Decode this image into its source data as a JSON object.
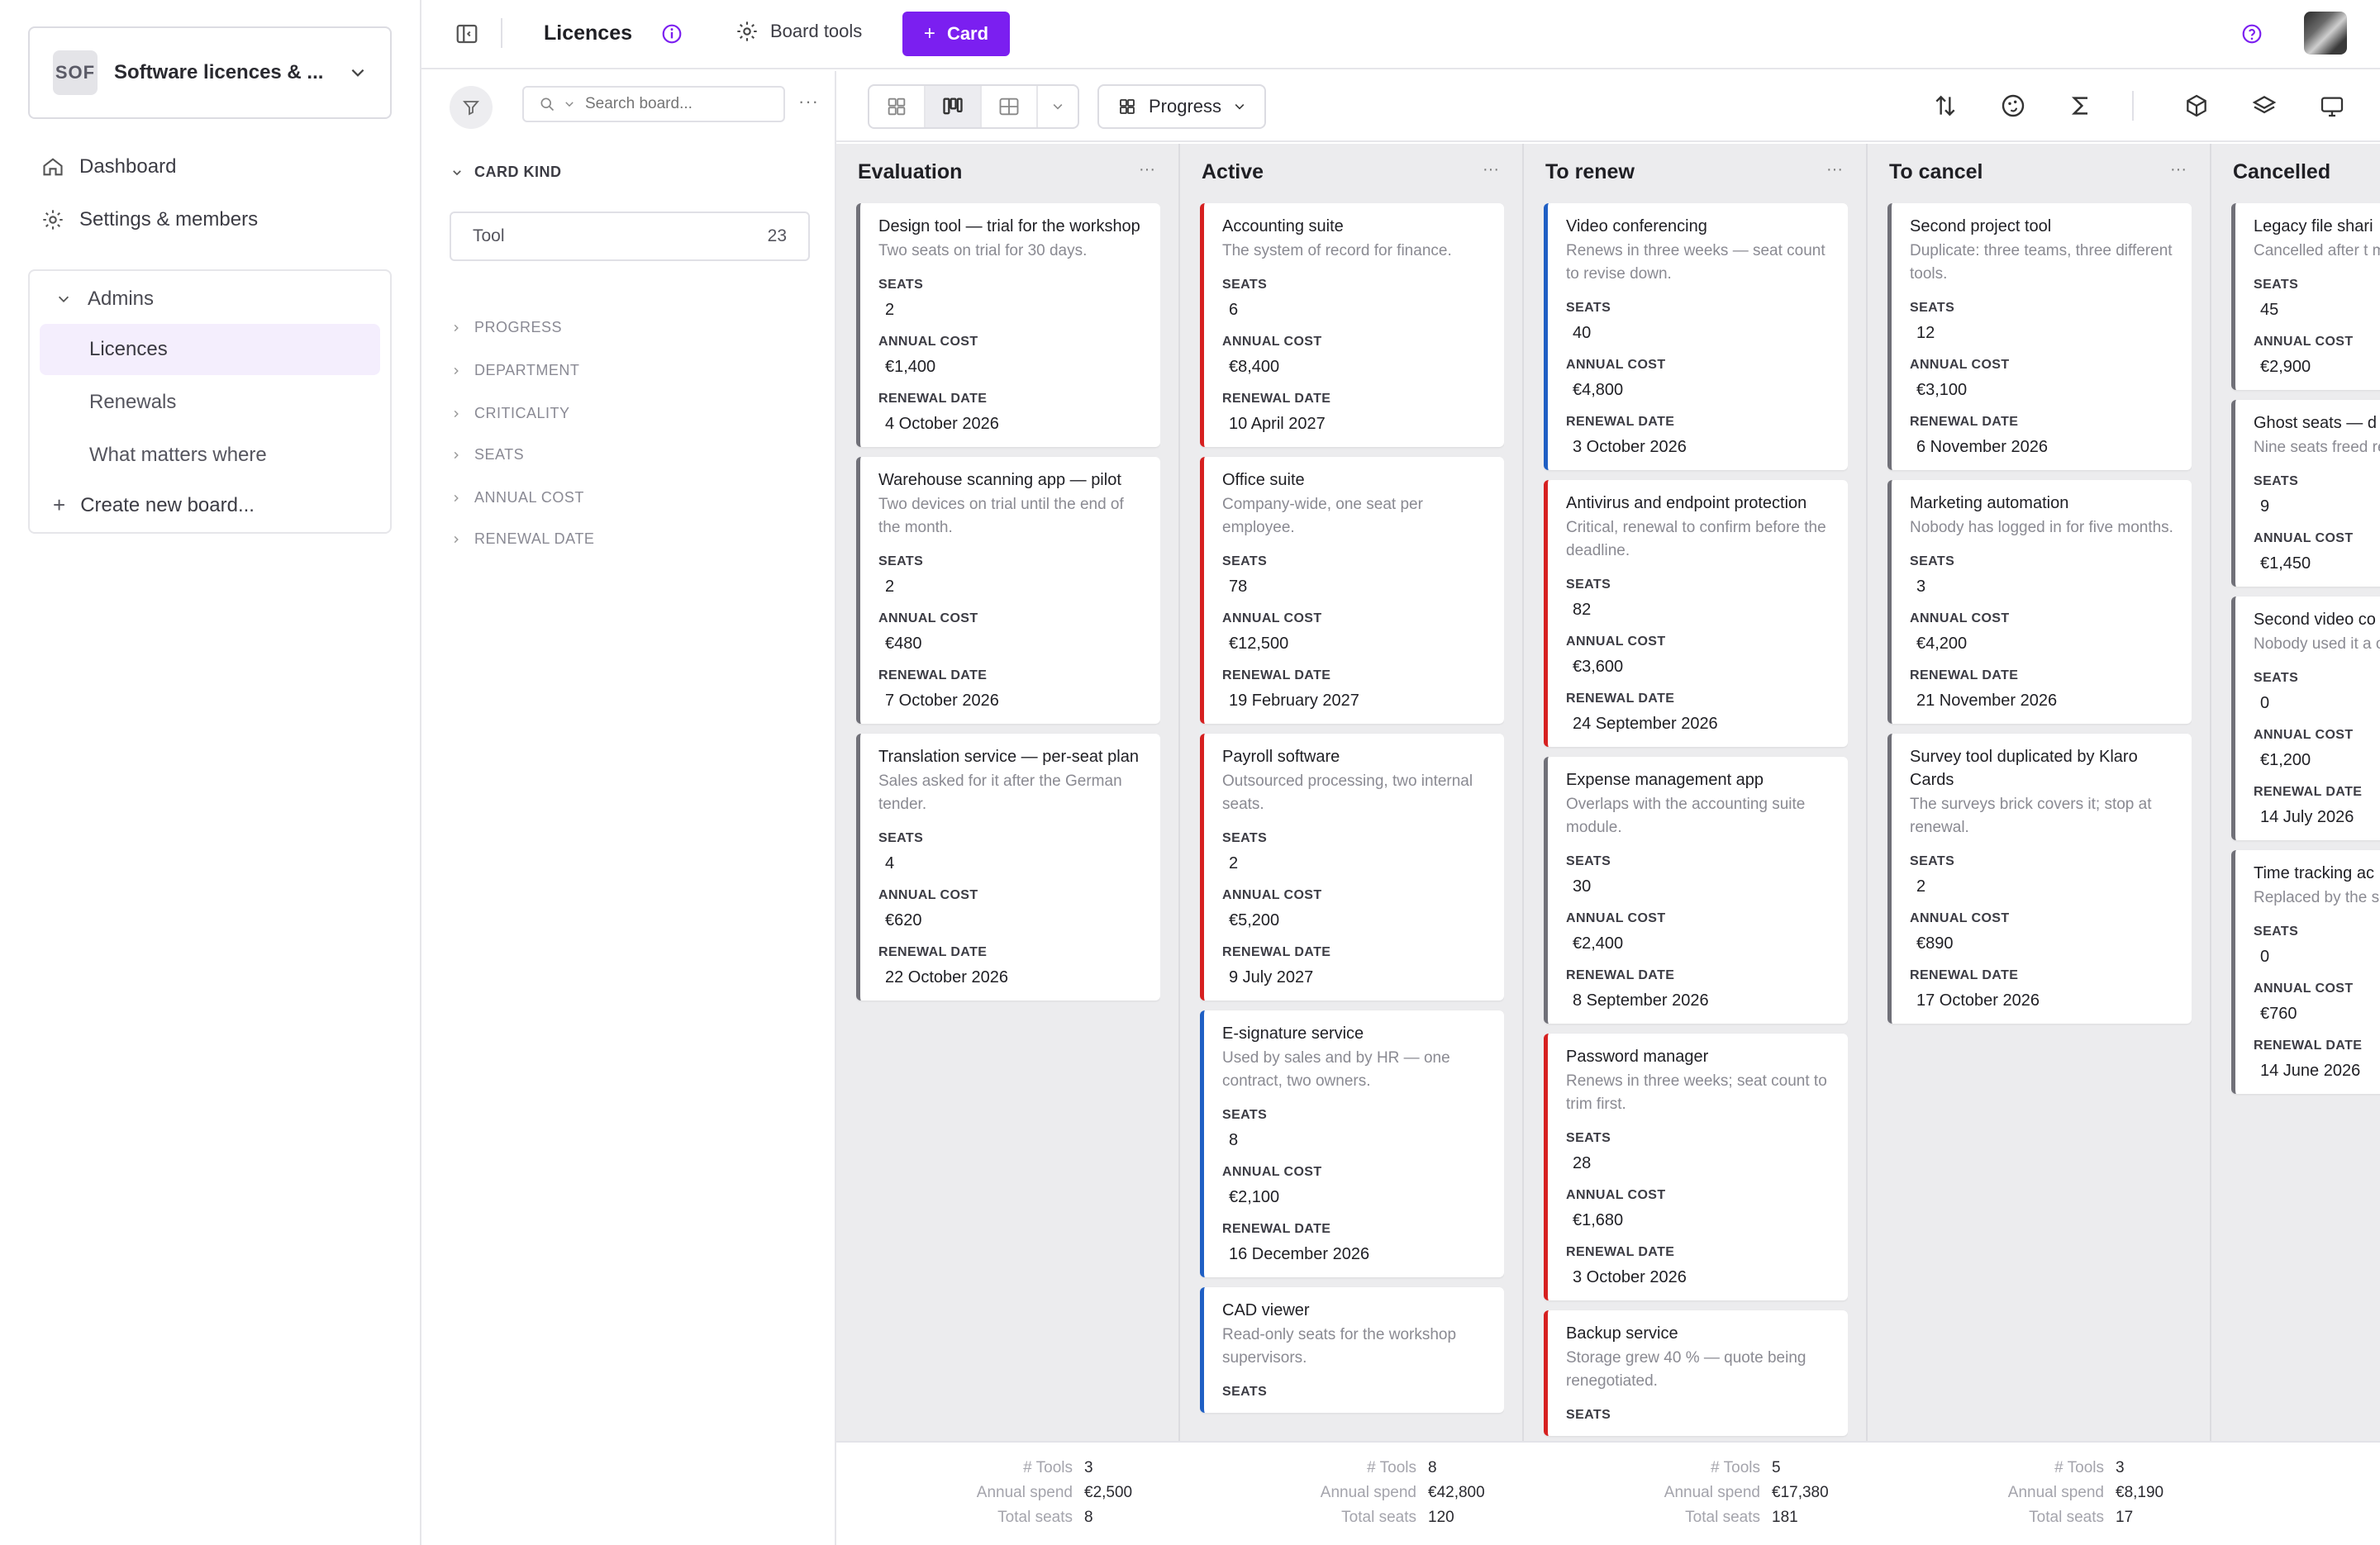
{
  "sidebar": {
    "workspace": {
      "abbr": "SOF",
      "name": "Software licences & ..."
    },
    "nav": [
      {
        "label": "Dashboard",
        "icon": "home-icon"
      },
      {
        "label": "Settings & members",
        "icon": "gear-icon"
      }
    ],
    "group": {
      "label": "Admins",
      "boards": [
        "Licences",
        "Renewals",
        "What matters where"
      ],
      "active_board": "Licences",
      "create_label": "Create new board..."
    }
  },
  "topbar": {
    "title": "Licences",
    "board_tools_label": "Board tools",
    "add_card_label": "Card"
  },
  "filters": {
    "search_placeholder": "Search board...",
    "card_kind_label": "CARD KIND",
    "kind_items": [
      {
        "label": "Tool",
        "count": "23"
      }
    ],
    "facets": [
      "PROGRESS",
      "DEPARTMENT",
      "CRITICALITY",
      "SEATS",
      "ANNUAL COST",
      "RENEWAL DATE"
    ]
  },
  "board_toolbar": {
    "group_by_label": "Progress",
    "views": [
      "grid-view",
      "kanban-view",
      "table-view"
    ],
    "active_view": "kanban-view"
  },
  "field_labels": {
    "seats": "SEATS",
    "cost": "ANNUAL COST",
    "date": "RENEWAL DATE"
  },
  "footer_labels": {
    "tools": "# Tools",
    "spend": "Annual spend",
    "seats": "Total seats"
  },
  "colors": {
    "accent": "#7b1ff0",
    "critical": "#d62020",
    "important": "#1f5fc4",
    "normal": "#707078"
  },
  "columns": [
    {
      "title": "Evaluation",
      "footer": {
        "tools": "3",
        "spend": "€2,500",
        "seats": "8"
      },
      "cards": [
        {
          "title": "Design tool — trial for the workshop",
          "desc": "Two seats on trial for 30 days.",
          "seats": "2",
          "cost": "€1,400",
          "date": "4 October 2026",
          "accent": "grey"
        },
        {
          "title": "Warehouse scanning app — pilot",
          "desc": "Two devices on trial until the end of the month.",
          "seats": "2",
          "cost": "€480",
          "date": "7 October 2026",
          "accent": "grey"
        },
        {
          "title": "Translation service — per-seat plan",
          "desc": "Sales asked for it after the German tender.",
          "seats": "4",
          "cost": "€620",
          "date": "22 October 2026",
          "accent": "grey"
        }
      ]
    },
    {
      "title": "Active",
      "footer": {
        "tools": "8",
        "spend": "€42,800",
        "seats": "120"
      },
      "cards": [
        {
          "title": "Accounting suite",
          "desc": "The system of record for finance.",
          "seats": "6",
          "cost": "€8,400",
          "date": "10 April 2027",
          "accent": "red"
        },
        {
          "title": "Office suite",
          "desc": "Company-wide, one seat per employee.",
          "seats": "78",
          "cost": "€12,500",
          "date": "19 February 2027",
          "accent": "red"
        },
        {
          "title": "Payroll software",
          "desc": "Outsourced processing, two internal seats.",
          "seats": "2",
          "cost": "€5,200",
          "date": "9 July 2027",
          "accent": "red"
        },
        {
          "title": "E-signature service",
          "desc": "Used by sales and by HR — one contract, two owners.",
          "seats": "8",
          "cost": "€2,100",
          "date": "16 December 2026",
          "accent": "blue"
        },
        {
          "title": "CAD viewer",
          "desc": "Read-only seats for the workshop supervisors.",
          "seats": "",
          "cost": "",
          "date": "",
          "accent": "blue"
        }
      ]
    },
    {
      "title": "To renew",
      "footer": {
        "tools": "5",
        "spend": "€17,380",
        "seats": "181"
      },
      "cards": [
        {
          "title": "Video conferencing",
          "desc": "Renews in three weeks — seat count to revise down.",
          "seats": "40",
          "cost": "€4,800",
          "date": "3 October 2026",
          "accent": "blue"
        },
        {
          "title": "Antivirus and endpoint protection",
          "desc": "Critical, renewal to confirm before the deadline.",
          "seats": "82",
          "cost": "€3,600",
          "date": "24 September 2026",
          "accent": "red"
        },
        {
          "title": "Expense management app",
          "desc": "Overlaps with the accounting suite module.",
          "seats": "30",
          "cost": "€2,400",
          "date": "8 September 2026",
          "accent": "grey"
        },
        {
          "title": "Password manager",
          "desc": "Renews in three weeks; seat count to trim first.",
          "seats": "28",
          "cost": "€1,680",
          "date": "3 October 2026",
          "accent": "red"
        },
        {
          "title": "Backup service",
          "desc": "Storage grew 40 % — quote being renegotiated.",
          "seats": "",
          "cost": "",
          "date": "",
          "accent": "red"
        }
      ]
    },
    {
      "title": "To cancel",
      "footer": {
        "tools": "3",
        "spend": "€8,190",
        "seats": "17"
      },
      "cards": [
        {
          "title": "Second project tool",
          "desc": "Duplicate: three teams, three different tools.",
          "seats": "12",
          "cost": "€3,100",
          "date": "6 November 2026",
          "accent": "grey"
        },
        {
          "title": "Marketing automation",
          "desc": "Nobody has logged in for five months.",
          "seats": "3",
          "cost": "€4,200",
          "date": "21 November 2026",
          "accent": "grey"
        },
        {
          "title": "Survey tool duplicated by Klaro Cards",
          "desc": "The surveys brick covers it; stop at renewal.",
          "seats": "2",
          "cost": "€890",
          "date": "17 October 2026",
          "accent": "grey"
        }
      ]
    },
    {
      "title": "Cancelled",
      "footer": {
        "tools": "",
        "spend": "",
        "seats": ""
      },
      "cards": [
        {
          "title": "Legacy file shari",
          "desc": "Cancelled after t migration.",
          "seats": "45",
          "cost": "€2,900",
          "date": "",
          "accent": "grey"
        },
        {
          "title": "Ghost seats — d employees",
          "desc": "Nine seats freed review.",
          "seats": "9",
          "cost": "€1,450",
          "date": "",
          "accent": "grey"
        },
        {
          "title": "Second video co",
          "desc": "Nobody used it a one landed.",
          "seats": "0",
          "cost": "€1,200",
          "date": "14 July 2026",
          "accent": "grey"
        },
        {
          "title": "Time tracking ac",
          "desc": "Replaced by the software's own f",
          "seats": "0",
          "cost": "€760",
          "date": "14 June 2026",
          "accent": "grey"
        }
      ]
    }
  ]
}
